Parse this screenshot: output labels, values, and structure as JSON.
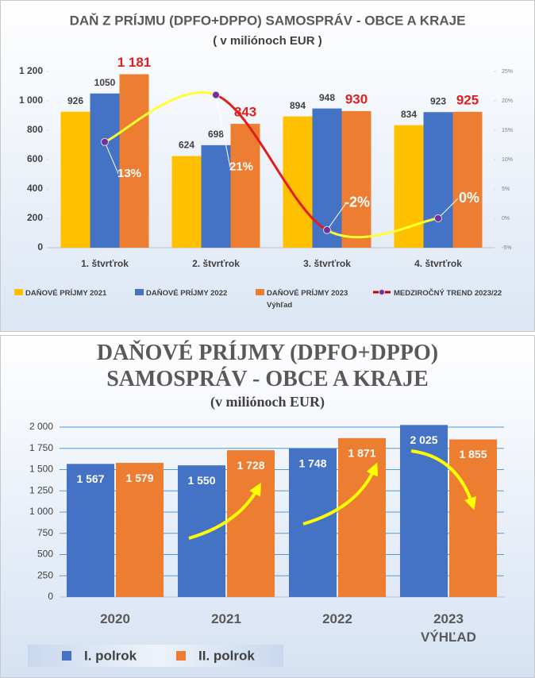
{
  "chart_data": [
    {
      "type": "bar",
      "title": "DAŇ Z PRÍJMU (DPFO+DPPO) SAMOSPRÁV - OBCE A KRAJE",
      "subtitle": "( v miliónoch EUR )",
      "categories": [
        "1. štvrťrok",
        "2. štvrťrok",
        "3. štvrťrok",
        "4. štvrťrok"
      ],
      "series": [
        {
          "name": "DAŇOVÉ PRÍJMY 2021",
          "color": "#ffc000",
          "values": [
            926,
            624,
            894,
            834
          ]
        },
        {
          "name": "DAŇOVÉ PRÍJMY 2022",
          "color": "#4472c4",
          "values": [
            1050,
            698,
            948,
            923
          ]
        },
        {
          "name": "DAŇOVÉ PRÍJMY 2023 Výhľad",
          "color": "#ed7d31",
          "values": [
            1181,
            843,
            930,
            925
          ],
          "value_labels": [
            "1 181",
            "843",
            "930",
            "925"
          ]
        },
        {
          "name": "MEDZIROČNÝ TREND 2023/22",
          "type": "line",
          "axis": "y2",
          "color": "#c00000",
          "marker_color": "#7030a0",
          "segment_colors": [
            "#ffff33",
            "#e01e1e",
            "#ffff33"
          ],
          "values": [
            13,
            21,
            -2,
            0
          ],
          "value_labels": [
            "13%",
            "21%",
            "-2%",
            "0%"
          ]
        }
      ],
      "ylim": [
        0,
        1200
      ],
      "yticks": [
        0,
        200,
        400,
        600,
        800,
        {
          "value": 1000,
          "label": "1 000"
        },
        {
          "value": 1200,
          "label": "1 200"
        }
      ],
      "y2lim": [
        -5,
        25
      ],
      "y2ticks": [
        {
          "value": -5,
          "label": "-5%"
        },
        {
          "value": 0,
          "label": "0%"
        },
        {
          "value": 5,
          "label": "5%"
        },
        {
          "value": 10,
          "label": "10%"
        },
        {
          "value": 15,
          "label": "15%"
        },
        {
          "value": 20,
          "label": "20%"
        },
        {
          "value": 25,
          "label": "25%"
        }
      ],
      "grid": false,
      "legend": "bottom"
    },
    {
      "type": "bar",
      "title": "DAŇOVÉ PRÍJMY (DPFO+DPPO) SAMOSPRÁV - OBCE A KRAJE",
      "subtitle": "(v miliónoch EUR)",
      "categories": [
        "2020",
        "2021",
        "2022",
        "2023 VÝHĽAD"
      ],
      "series": [
        {
          "name": "I. polrok",
          "color": "#4472c4",
          "values": [
            1567,
            1550,
            1748,
            2025
          ],
          "value_labels": [
            "1 567",
            "1 550",
            "1 748",
            "2 025"
          ]
        },
        {
          "name": "II. polrok",
          "color": "#ed7d31",
          "values": [
            1579,
            1728,
            1871,
            1855
          ],
          "value_labels": [
            "1 579",
            "1 728",
            "1 871",
            "1 855"
          ]
        }
      ],
      "ylim": [
        0,
        2000
      ],
      "yticks": [
        0,
        250,
        500,
        750,
        {
          "value": 1000,
          "label": "1 000"
        },
        {
          "value": 1250,
          "label": "1 250"
        },
        {
          "value": 1500,
          "label": "1 500"
        },
        {
          "value": 1750,
          "label": "1 750"
        },
        {
          "value": 2000,
          "label": "2 000"
        }
      ],
      "grid": true,
      "legend": "bottom-left"
    }
  ]
}
